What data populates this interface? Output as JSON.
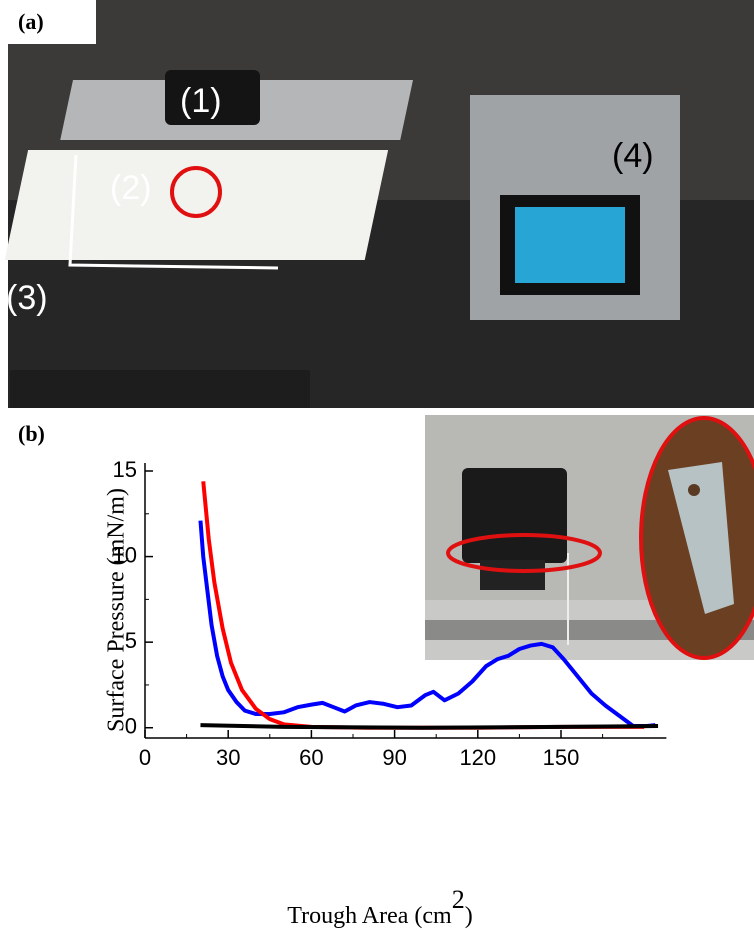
{
  "photo_labels": {
    "panel_a": "(a)",
    "item1": "(1)",
    "item2": "(2)",
    "item3": "(3)",
    "item4": "(4)",
    "panel_b": "(b)"
  },
  "chart_data": {
    "type": "line",
    "x_label_parts": [
      "Trough Area (cm",
      "2",
      ")"
    ],
    "y_label": "Surface Pressure (mN/m)",
    "xlim": [
      0,
      188
    ],
    "ylim": [
      -0.6,
      15
    ],
    "xticks": [
      0,
      30,
      60,
      90,
      120,
      150
    ],
    "xminorticks": [
      15,
      45,
      75,
      105,
      135,
      165
    ],
    "yticks": [
      0,
      5,
      10,
      15
    ],
    "yminorticks": [
      2.5,
      7.5,
      12.5
    ],
    "series": [
      {
        "color": "#0000ff",
        "x": [
          20,
          21,
          22.5,
          24,
          26,
          28,
          30,
          33,
          36,
          40,
          45,
          50,
          55,
          60,
          64,
          68,
          72,
          76,
          81,
          86,
          91,
          96,
          101,
          104,
          108,
          113,
          118,
          123,
          127,
          131,
          135,
          139,
          143,
          147,
          151,
          156,
          161,
          166,
          171,
          176,
          181,
          184
        ],
        "values": [
          12.1,
          10,
          8,
          6,
          4.2,
          3,
          2.2,
          1.5,
          1.0,
          0.8,
          0.8,
          0.9,
          1.2,
          1.35,
          1.45,
          1.2,
          0.95,
          1.3,
          1.5,
          1.4,
          1.2,
          1.3,
          1.9,
          2.1,
          1.6,
          2.0,
          2.7,
          3.6,
          4.0,
          4.2,
          4.6,
          4.8,
          4.9,
          4.7,
          4.0,
          3.0,
          2.0,
          1.3,
          0.7,
          0.1,
          0.1,
          0.15
        ]
      },
      {
        "color": "#ff0000",
        "x": [
          21,
          23,
          25,
          28,
          31,
          35,
          40,
          45,
          50,
          60,
          80,
          120,
          150,
          180
        ],
        "values": [
          14.4,
          11,
          8.5,
          5.8,
          3.8,
          2.2,
          1.1,
          0.5,
          0.2,
          0.05,
          0,
          0,
          0.05,
          0.05
        ]
      },
      {
        "color": "#000000",
        "x": [
          20,
          50,
          100,
          150,
          185
        ],
        "values": [
          0.15,
          0.05,
          0,
          0.05,
          0.1
        ]
      }
    ]
  }
}
